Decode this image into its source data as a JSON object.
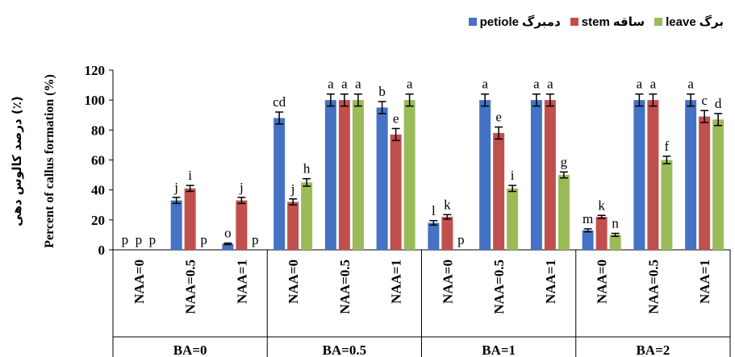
{
  "chart_data": {
    "type": "bar",
    "ylabel_fa": "درصد کالوس دهی (٪)",
    "ylabel_en": "Percent of callus formation (%)",
    "ylim": [
      0,
      120
    ],
    "yticks": [
      0,
      20,
      40,
      60,
      80,
      100,
      120
    ],
    "grid": false,
    "legend_position": "top-right",
    "groups": [
      {
        "label": "BA=0",
        "categories": [
          "NAA=0",
          "NAA=0.5",
          "NAA=1"
        ]
      },
      {
        "label": "BA=0.5",
        "categories": [
          "NAA=0",
          "NAA=0.5",
          "NAA=1"
        ]
      },
      {
        "label": "BA=1",
        "categories": [
          "NAA=0",
          "NAA=0.5",
          "NAA=1"
        ]
      },
      {
        "label": "BA=2",
        "categories": [
          "NAA=0",
          "NAA=0.5",
          "NAA=1"
        ]
      }
    ],
    "series": [
      {
        "name": "petiole",
        "name_fa": "دمبرگ",
        "color": "#4472c4",
        "values": [
          0,
          33,
          4,
          88,
          100,
          95,
          18,
          100,
          100,
          13,
          100,
          100
        ],
        "errors": [
          0,
          2,
          0.5,
          4,
          4,
          4,
          1.5,
          4,
          4,
          1,
          4,
          4
        ],
        "letters": [
          "p",
          "j",
          "o",
          "cd",
          "a",
          "b",
          "l",
          "a",
          "a",
          "m",
          "a",
          "a"
        ]
      },
      {
        "name": "stem",
        "name_fa": "ساقه",
        "color": "#c0504d",
        "values": [
          0,
          41,
          33,
          32,
          100,
          77,
          22,
          78,
          100,
          22,
          100,
          89
        ],
        "errors": [
          0,
          2,
          2,
          2,
          4,
          4,
          1.5,
          4,
          4,
          1,
          4,
          4
        ],
        "letters": [
          "p",
          "i",
          "j",
          "j",
          "a",
          "e",
          "k",
          "e",
          "a",
          "k",
          "a",
          "c"
        ]
      },
      {
        "name": "leave",
        "name_fa": "برگ",
        "color": "#9bbb59",
        "values": [
          0,
          0,
          0,
          45,
          100,
          100,
          0,
          41,
          50,
          10,
          60,
          87
        ],
        "errors": [
          0,
          0,
          0,
          2.5,
          4,
          4,
          0,
          2,
          2,
          1,
          2.5,
          4
        ],
        "letters": [
          "p",
          "p",
          "p",
          "h",
          "a",
          "a",
          "p",
          "i",
          "g",
          "n",
          "f",
          "d"
        ]
      }
    ]
  }
}
